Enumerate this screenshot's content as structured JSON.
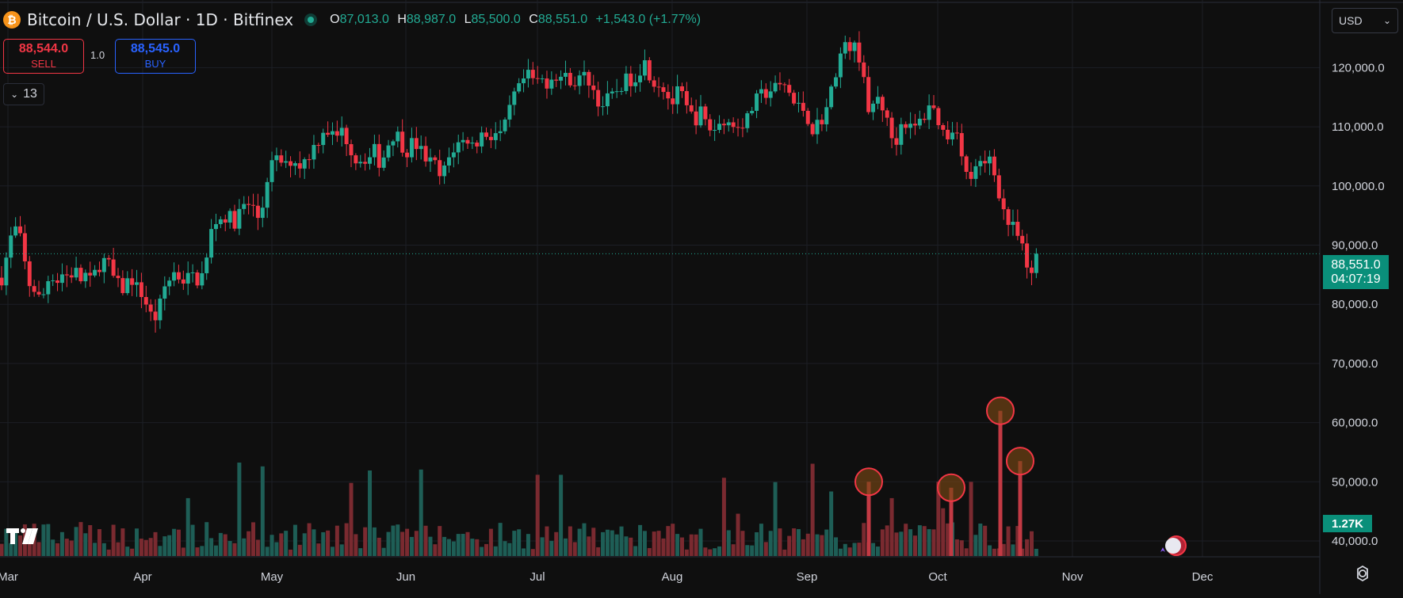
{
  "symbol": {
    "title": "Bitcoin / U.S. Dollar · 1D · Bitfinex",
    "coin_icon": "₿"
  },
  "ohlc": {
    "o_label": "O",
    "o": "87,013.0",
    "h_label": "H",
    "h": "88,987.0",
    "l_label": "L",
    "l": "85,500.0",
    "c_label": "C",
    "c": "88,551.0",
    "change": "+1,543.0 (+1.77%)"
  },
  "trade": {
    "sell_price": "88,544.0",
    "sell_label": "SELL",
    "spread": "1.0",
    "buy_price": "88,545.0",
    "buy_label": "BUY"
  },
  "indicators_count": "13",
  "currency": "USD",
  "last_price": {
    "price": "88,551.0",
    "countdown": "04:07:19"
  },
  "volume_tag": "1.27K",
  "chart_data": {
    "type": "candlestick",
    "y_ticks": [
      "40,000.0",
      "50,000.0",
      "60,000.0",
      "70,000.0",
      "80,000.0",
      "90,000.0",
      "100,000.0",
      "110,000.0",
      "120,000.0"
    ],
    "y_range": [
      38600,
      129000
    ],
    "x_ticks": [
      "Mar",
      "Apr",
      "May",
      "Jun",
      "Jul",
      "Aug",
      "Sep",
      "Oct",
      "Nov",
      "Dec"
    ],
    "up_color": "#22ab94",
    "down_color": "#f23645",
    "last_close": 88551,
    "close_path": [
      [
        2,
        84500
      ],
      [
        10,
        89000
      ],
      [
        17,
        93000
      ],
      [
        24,
        92000
      ],
      [
        31,
        87000
      ],
      [
        38,
        83000
      ],
      [
        45,
        82500
      ],
      [
        52,
        80000
      ],
      [
        59,
        84000
      ],
      [
        66,
        85000
      ],
      [
        73,
        84000
      ],
      [
        80,
        85500
      ],
      [
        87,
        84500
      ],
      [
        94,
        86000
      ],
      [
        101,
        84000
      ],
      [
        108,
        85000
      ],
      [
        115,
        83500
      ],
      [
        122,
        86000
      ],
      [
        129,
        87500
      ],
      [
        136,
        87000
      ],
      [
        143,
        84500
      ],
      [
        150,
        83000
      ],
      [
        157,
        82500
      ],
      [
        164,
        85000
      ],
      [
        171,
        83000
      ],
      [
        178,
        82000
      ],
      [
        185,
        80000
      ],
      [
        192,
        77500
      ],
      [
        199,
        78000
      ],
      [
        206,
        82500
      ],
      [
        213,
        84000
      ],
      [
        220,
        85500
      ],
      [
        227,
        84500
      ],
      [
        234,
        84000
      ],
      [
        241,
        85000
      ],
      [
        248,
        84000
      ],
      [
        255,
        85000
      ],
      [
        262,
        88000
      ],
      [
        269,
        94500
      ],
      [
        276,
        94000
      ],
      [
        283,
        95000
      ],
      [
        290,
        94500
      ],
      [
        297,
        94000
      ],
      [
        304,
        96000
      ],
      [
        311,
        97000
      ],
      [
        318,
        96500
      ],
      [
        325,
        94500
      ],
      [
        332,
        97000
      ],
      [
        339,
        103000
      ],
      [
        346,
        104000
      ],
      [
        353,
        104500
      ],
      [
        360,
        103000
      ],
      [
        367,
        104500
      ],
      [
        374,
        104000
      ],
      [
        381,
        103500
      ],
      [
        388,
        105000
      ],
      [
        395,
        106500
      ],
      [
        402,
        108000
      ],
      [
        409,
        110000
      ],
      [
        416,
        109000
      ],
      [
        423,
        108000
      ],
      [
        430,
        109500
      ],
      [
        437,
        108000
      ],
      [
        444,
        106000
      ],
      [
        451,
        104000
      ],
      [
        458,
        105000
      ],
      [
        465,
        104500
      ],
      [
        472,
        106000
      ],
      [
        479,
        104000
      ],
      [
        486,
        105500
      ],
      [
        493,
        108500
      ],
      [
        500,
        109000
      ],
      [
        507,
        107000
      ],
      [
        514,
        106000
      ],
      [
        521,
        107500
      ],
      [
        528,
        106500
      ],
      [
        535,
        105000
      ],
      [
        542,
        104000
      ],
      [
        549,
        103500
      ],
      [
        556,
        101000
      ],
      [
        563,
        103500
      ],
      [
        570,
        106000
      ],
      [
        577,
        107000
      ],
      [
        584,
        107500
      ],
      [
        591,
        108000
      ],
      [
        598,
        106500
      ],
      [
        605,
        108500
      ],
      [
        612,
        109000
      ],
      [
        619,
        108500
      ],
      [
        626,
        109000
      ],
      [
        633,
        108500
      ],
      [
        640,
        111000
      ],
      [
        647,
        115000
      ],
      [
        654,
        116000
      ],
      [
        661,
        118000
      ],
      [
        668,
        118500
      ],
      [
        675,
        117500
      ],
      [
        682,
        118000
      ],
      [
        689,
        117500
      ],
      [
        696,
        118500
      ],
      [
        703,
        119000
      ],
      [
        710,
        118000
      ],
      [
        717,
        118500
      ],
      [
        724,
        117500
      ],
      [
        731,
        118000
      ],
      [
        738,
        118500
      ],
      [
        745,
        117500
      ],
      [
        752,
        115000
      ],
      [
        759,
        113500
      ],
      [
        766,
        114500
      ],
      [
        773,
        115000
      ],
      [
        780,
        116500
      ],
      [
        787,
        117500
      ],
      [
        794,
        118000
      ],
      [
        801,
        118500
      ],
      [
        808,
        120000
      ],
      [
        815,
        121000
      ],
      [
        822,
        118000
      ],
      [
        829,
        117500
      ],
      [
        836,
        117000
      ],
      [
        843,
        115000
      ],
      [
        850,
        114000
      ],
      [
        857,
        116500
      ],
      [
        864,
        113500
      ],
      [
        871,
        112000
      ],
      [
        878,
        111500
      ],
      [
        885,
        112500
      ],
      [
        892,
        110000
      ],
      [
        899,
        109500
      ],
      [
        906,
        110000
      ],
      [
        913,
        111500
      ],
      [
        920,
        110500
      ],
      [
        927,
        110000
      ],
      [
        934,
        111000
      ],
      [
        941,
        110500
      ],
      [
        948,
        113000
      ],
      [
        955,
        114500
      ],
      [
        962,
        115500
      ],
      [
        969,
        116000
      ],
      [
        976,
        116500
      ],
      [
        983,
        116500
      ],
      [
        990,
        117000
      ],
      [
        997,
        115500
      ],
      [
        1004,
        113000
      ],
      [
        1011,
        113500
      ],
      [
        1018,
        112000
      ],
      [
        1025,
        109500
      ],
      [
        1032,
        110500
      ],
      [
        1039,
        112000
      ],
      [
        1046,
        114000
      ],
      [
        1053,
        119000
      ],
      [
        1060,
        122000
      ],
      [
        1067,
        123500
      ],
      [
        1074,
        124000
      ],
      [
        1081,
        122500
      ],
      [
        1088,
        121500
      ],
      [
        1095,
        111000
      ],
      [
        1102,
        114000
      ],
      [
        1109,
        115000
      ],
      [
        1116,
        112500
      ],
      [
        1123,
        108500
      ],
      [
        1130,
        107500
      ],
      [
        1137,
        110500
      ],
      [
        1144,
        111000
      ],
      [
        1151,
        109000
      ],
      [
        1158,
        110500
      ],
      [
        1165,
        111500
      ],
      [
        1172,
        114000
      ],
      [
        1179,
        112500
      ],
      [
        1186,
        110500
      ],
      [
        1193,
        108000
      ],
      [
        1200,
        109500
      ],
      [
        1207,
        110500
      ],
      [
        1214,
        104000
      ],
      [
        1221,
        101000
      ],
      [
        1228,
        102000
      ],
      [
        1235,
        103500
      ],
      [
        1242,
        103000
      ],
      [
        1249,
        105000
      ],
      [
        1256,
        101500
      ],
      [
        1263,
        97500
      ],
      [
        1270,
        94000
      ],
      [
        1277,
        93000
      ],
      [
        1284,
        91500
      ],
      [
        1291,
        88500
      ],
      [
        1298,
        85000
      ],
      [
        1305,
        84000
      ],
      [
        1311,
        88551
      ]
    ],
    "volume_spikes": [
      {
        "x": 1096,
        "v": 50000
      },
      {
        "x": 1200,
        "v": 49000
      },
      {
        "x": 1262,
        "v": 62000
      },
      {
        "x": 1287,
        "v": 53500
      }
    ]
  }
}
